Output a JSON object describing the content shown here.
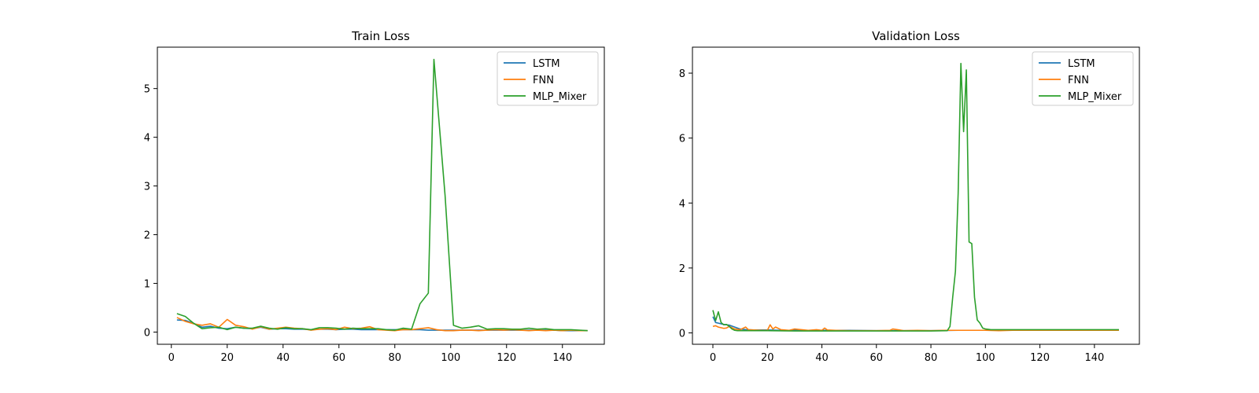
{
  "chart_data": [
    {
      "type": "line",
      "title": "Train Loss",
      "xlabel": "",
      "ylabel": "",
      "xlim": [
        -5,
        155
      ],
      "ylim": [
        -0.25,
        5.85
      ],
      "xticks": [
        0,
        20,
        40,
        60,
        80,
        100,
        120,
        140
      ],
      "yticks": [
        0,
        1,
        2,
        3,
        4,
        5
      ],
      "grid": false,
      "legend": "top-right",
      "series": [
        {
          "name": "LSTM",
          "color": "#1f77b4",
          "x": [
            2,
            5,
            8,
            11,
            14,
            17,
            20,
            23,
            26,
            29,
            32,
            35,
            38,
            41,
            44,
            47,
            50,
            53,
            56,
            59,
            62,
            65,
            68,
            71,
            74,
            77,
            80,
            83,
            86,
            89,
            92,
            95,
            98,
            101,
            104,
            107,
            110,
            113,
            116,
            119,
            122,
            125,
            128,
            131,
            134,
            137,
            140,
            143,
            146,
            149
          ],
          "y": [
            0.25,
            0.24,
            0.18,
            0.1,
            0.12,
            0.08,
            0.07,
            0.1,
            0.08,
            0.07,
            0.1,
            0.06,
            0.07,
            0.07,
            0.06,
            0.06,
            0.05,
            0.06,
            0.06,
            0.05,
            0.06,
            0.06,
            0.05,
            0.05,
            0.05,
            0.05,
            0.05,
            0.05,
            0.05,
            0.05,
            0.04,
            0.04,
            0.04,
            0.04,
            0.04,
            0.04,
            0.04,
            0.04,
            0.04,
            0.04,
            0.04,
            0.04,
            0.04,
            0.04,
            0.04,
            0.04,
            0.03,
            0.03,
            0.03,
            0.03
          ]
        },
        {
          "name": "FNN",
          "color": "#ff7f0e",
          "x": [
            2,
            5,
            8,
            11,
            14,
            17,
            20,
            23,
            26,
            29,
            32,
            35,
            38,
            41,
            44,
            47,
            50,
            53,
            56,
            59,
            62,
            65,
            68,
            71,
            74,
            77,
            80,
            83,
            86,
            89,
            92,
            95,
            98,
            101,
            104,
            107,
            110,
            113,
            116,
            119,
            122,
            125,
            128,
            131,
            134,
            137,
            140,
            143,
            146,
            149
          ],
          "y": [
            0.3,
            0.22,
            0.17,
            0.14,
            0.17,
            0.1,
            0.26,
            0.14,
            0.11,
            0.06,
            0.11,
            0.06,
            0.08,
            0.1,
            0.08,
            0.07,
            0.04,
            0.06,
            0.07,
            0.05,
            0.1,
            0.07,
            0.08,
            0.11,
            0.05,
            0.04,
            0.03,
            0.05,
            0.05,
            0.07,
            0.09,
            0.05,
            0.03,
            0.03,
            0.04,
            0.04,
            0.03,
            0.04,
            0.05,
            0.04,
            0.05,
            0.04,
            0.03,
            0.04,
            0.03,
            0.04,
            0.03,
            0.04,
            0.03,
            0.03
          ]
        },
        {
          "name": "MLP_Mixer",
          "color": "#2ca02c",
          "x": [
            2,
            5,
            8,
            11,
            14,
            17,
            20,
            23,
            26,
            29,
            32,
            35,
            38,
            41,
            44,
            47,
            50,
            53,
            56,
            59,
            62,
            65,
            68,
            71,
            74,
            77,
            80,
            83,
            86,
            89,
            92,
            94,
            96,
            98,
            101,
            104,
            107,
            110,
            113,
            116,
            119,
            122,
            125,
            128,
            131,
            134,
            137,
            140,
            143,
            146,
            149
          ],
          "y": [
            0.38,
            0.32,
            0.18,
            0.07,
            0.09,
            0.1,
            0.05,
            0.1,
            0.08,
            0.08,
            0.12,
            0.08,
            0.06,
            0.09,
            0.07,
            0.07,
            0.05,
            0.09,
            0.09,
            0.08,
            0.06,
            0.08,
            0.07,
            0.07,
            0.07,
            0.05,
            0.04,
            0.08,
            0.06,
            0.58,
            0.8,
            5.6,
            4.2,
            2.8,
            0.14,
            0.08,
            0.1,
            0.13,
            0.06,
            0.07,
            0.07,
            0.06,
            0.06,
            0.08,
            0.06,
            0.07,
            0.05,
            0.05,
            0.05,
            0.04,
            0.03
          ]
        }
      ]
    },
    {
      "type": "line",
      "title": "Validation Loss",
      "xlabel": "",
      "ylabel": "",
      "xlim": [
        -7.5,
        156.5
      ],
      "ylim": [
        -0.35,
        8.8
      ],
      "xticks": [
        0,
        20,
        40,
        60,
        80,
        100,
        120,
        140
      ],
      "yticks": [
        0,
        2,
        4,
        6,
        8
      ],
      "grid": false,
      "legend": "top-right",
      "series": [
        {
          "name": "LSTM",
          "color": "#1f77b4",
          "x": [
            0,
            1,
            2,
            4,
            6,
            8,
            10,
            12,
            15,
            20,
            25,
            30,
            40,
            50,
            60,
            70,
            80,
            90,
            100,
            110,
            120,
            130,
            140,
            149
          ],
          "y": [
            0.5,
            0.32,
            0.3,
            0.26,
            0.24,
            0.18,
            0.12,
            0.1,
            0.09,
            0.09,
            0.08,
            0.08,
            0.08,
            0.08,
            0.07,
            0.07,
            0.07,
            0.08,
            0.08,
            0.08,
            0.08,
            0.08,
            0.08,
            0.08
          ]
        },
        {
          "name": "FNN",
          "color": "#ff7f0e",
          "x": [
            0,
            1,
            2,
            4,
            5,
            6,
            8,
            10,
            12,
            13,
            15,
            18,
            20,
            21,
            22,
            23,
            25,
            28,
            30,
            35,
            38,
            40,
            41,
            42,
            45,
            50,
            55,
            60,
            65,
            66,
            70,
            75,
            80,
            85,
            90,
            95,
            100,
            105,
            110,
            120,
            130,
            140,
            149
          ],
          "y": [
            0.2,
            0.22,
            0.18,
            0.14,
            0.15,
            0.2,
            0.12,
            0.1,
            0.18,
            0.1,
            0.09,
            0.08,
            0.08,
            0.25,
            0.12,
            0.18,
            0.1,
            0.08,
            0.12,
            0.08,
            0.1,
            0.08,
            0.15,
            0.09,
            0.08,
            0.07,
            0.07,
            0.07,
            0.08,
            0.12,
            0.07,
            0.08,
            0.07,
            0.08,
            0.08,
            0.08,
            0.08,
            0.07,
            0.08,
            0.08,
            0.08,
            0.08,
            0.08
          ]
        },
        {
          "name": "MLP_Mixer",
          "color": "#2ca02c",
          "x": [
            0,
            1,
            2,
            3,
            4,
            5,
            6,
            7,
            8,
            9,
            10,
            12,
            15,
            20,
            30,
            40,
            50,
            60,
            70,
            80,
            86,
            87,
            88,
            89,
            90,
            91,
            92,
            93,
            94,
            95,
            96,
            97,
            98,
            99,
            100,
            102,
            105,
            110,
            120,
            130,
            140,
            149
          ],
          "y": [
            0.7,
            0.38,
            0.65,
            0.32,
            0.25,
            0.26,
            0.2,
            0.12,
            0.08,
            0.07,
            0.07,
            0.07,
            0.07,
            0.07,
            0.06,
            0.06,
            0.06,
            0.06,
            0.06,
            0.06,
            0.07,
            0.2,
            1.1,
            1.9,
            4.3,
            8.3,
            6.2,
            8.1,
            2.8,
            2.75,
            1.1,
            0.4,
            0.3,
            0.15,
            0.12,
            0.1,
            0.1,
            0.1,
            0.1,
            0.1,
            0.1,
            0.1
          ]
        }
      ]
    }
  ]
}
